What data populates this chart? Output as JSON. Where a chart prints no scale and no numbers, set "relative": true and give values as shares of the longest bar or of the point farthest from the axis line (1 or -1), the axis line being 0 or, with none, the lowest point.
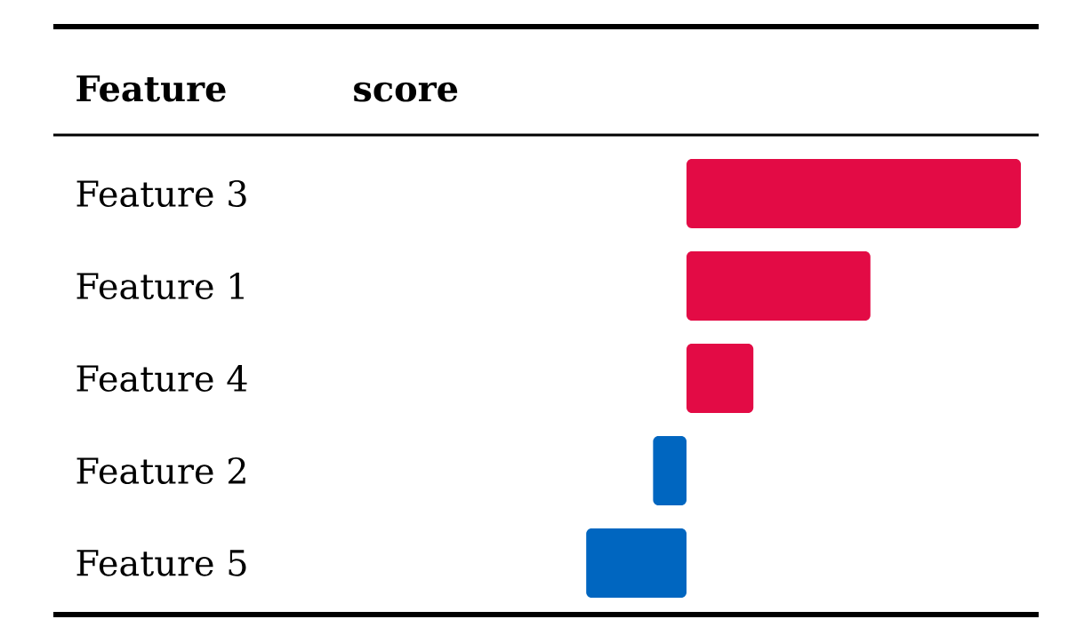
{
  "chart_data": {
    "type": "bar",
    "orientation": "horizontal",
    "relative": true,
    "annotations": [
      "Feature",
      "score"
    ],
    "categories": [
      "Feature 3",
      "Feature 1",
      "Feature 4",
      "Feature 2",
      "Feature 5"
    ],
    "values": [
      1,
      0.55,
      0.2,
      -0.1,
      -0.3
    ],
    "colors": [
      "#e30b45",
      "#e30b45",
      "#e30b45",
      "#0066c0",
      "#0066c0"
    ]
  }
}
